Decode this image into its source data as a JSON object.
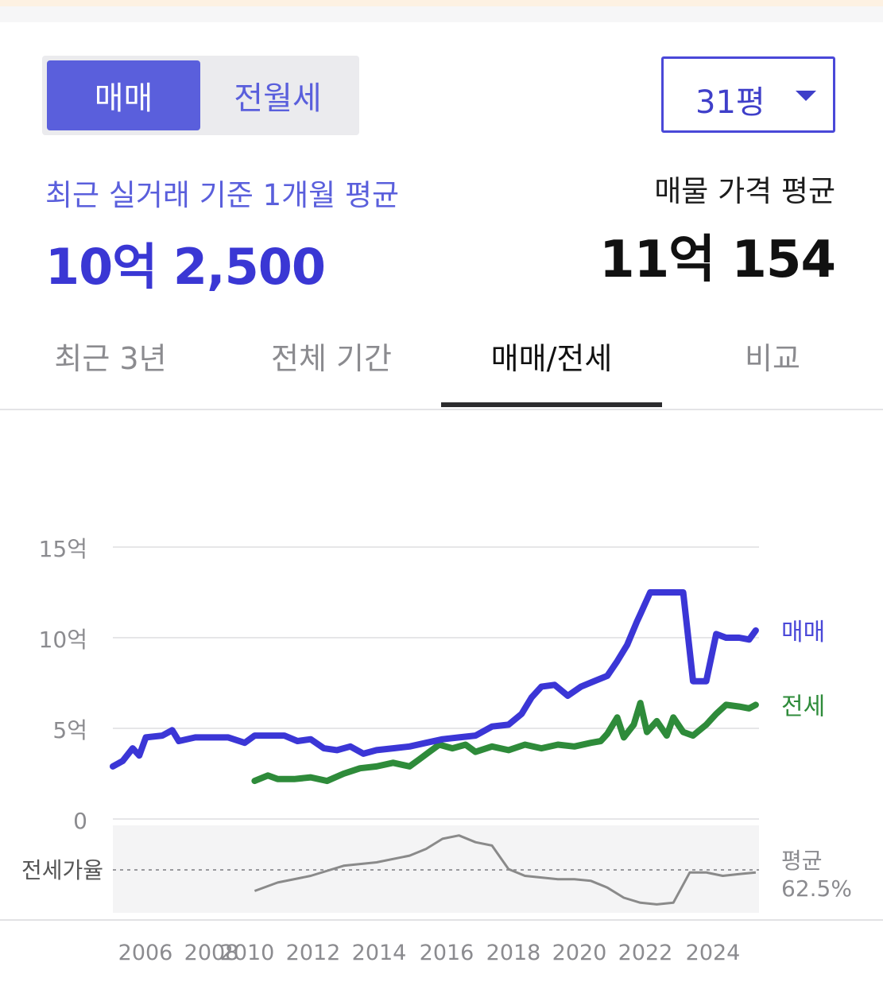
{
  "colors": {
    "accent": "#5a5fdc",
    "sale": "#3b36d6",
    "jeonse": "#2e8b3a",
    "ratio": "#8a8a8a"
  },
  "segment": {
    "active_label": "매매",
    "inactive_label": "전월세"
  },
  "size_select": {
    "value": "31평"
  },
  "recent": {
    "label": "최근 실거래 기준 1개월 평균",
    "value": "10억 2,500"
  },
  "listing": {
    "label": "매물 가격 평균",
    "value": "11억 154"
  },
  "tabs": [
    {
      "label": "최근 3년"
    },
    {
      "label": "전체 기간"
    },
    {
      "label": "매매/전세",
      "active": true
    },
    {
      "label": "비교"
    }
  ],
  "chart_data": {
    "type": "line",
    "y_unit": "억",
    "ylim": [
      0,
      15
    ],
    "yticks": [
      "15억",
      "10억",
      "5억",
      "0"
    ],
    "ytick_values": [
      15,
      10,
      5,
      0
    ],
    "xticks": [
      "2006",
      "2008",
      "2010",
      "2012",
      "2014",
      "2016",
      "2018",
      "2020",
      "2022",
      "2024"
    ],
    "series": [
      {
        "name": "매매",
        "color": "#3b36d6",
        "points": [
          [
            2006.0,
            2.9
          ],
          [
            2006.3,
            3.2
          ],
          [
            2006.6,
            3.9
          ],
          [
            2006.8,
            3.5
          ],
          [
            2007.0,
            4.5
          ],
          [
            2007.5,
            4.6
          ],
          [
            2007.8,
            4.9
          ],
          [
            2008.0,
            4.3
          ],
          [
            2008.5,
            4.5
          ],
          [
            2009.0,
            4.5
          ],
          [
            2009.5,
            4.5
          ],
          [
            2010.0,
            4.2
          ],
          [
            2010.3,
            4.6
          ],
          [
            2010.8,
            4.6
          ],
          [
            2011.2,
            4.6
          ],
          [
            2011.6,
            4.3
          ],
          [
            2012.0,
            4.4
          ],
          [
            2012.4,
            3.9
          ],
          [
            2012.8,
            3.8
          ],
          [
            2013.2,
            4.0
          ],
          [
            2013.6,
            3.6
          ],
          [
            2014.0,
            3.8
          ],
          [
            2014.5,
            3.9
          ],
          [
            2015.0,
            4.0
          ],
          [
            2015.5,
            4.2
          ],
          [
            2016.0,
            4.4
          ],
          [
            2016.5,
            4.5
          ],
          [
            2017.0,
            4.6
          ],
          [
            2017.5,
            5.1
          ],
          [
            2018.0,
            5.2
          ],
          [
            2018.4,
            5.8
          ],
          [
            2018.7,
            6.7
          ],
          [
            2019.0,
            7.3
          ],
          [
            2019.4,
            7.4
          ],
          [
            2019.8,
            6.8
          ],
          [
            2020.2,
            7.3
          ],
          [
            2020.6,
            7.6
          ],
          [
            2021.0,
            7.9
          ],
          [
            2021.3,
            8.7
          ],
          [
            2021.6,
            9.6
          ],
          [
            2021.9,
            10.9
          ],
          [
            2022.0,
            11.3
          ],
          [
            2022.3,
            12.5
          ],
          [
            2022.8,
            12.5
          ],
          [
            2023.3,
            12.5
          ],
          [
            2023.6,
            7.6
          ],
          [
            2024.0,
            7.6
          ],
          [
            2024.3,
            10.2
          ],
          [
            2024.6,
            10.0
          ],
          [
            2025.0,
            10.0
          ],
          [
            2025.3,
            9.9
          ],
          [
            2025.5,
            10.4
          ]
        ]
      },
      {
        "name": "전세",
        "color": "#2e8b3a",
        "points": [
          [
            2010.3,
            2.1
          ],
          [
            2010.7,
            2.4
          ],
          [
            2011.0,
            2.2
          ],
          [
            2011.5,
            2.2
          ],
          [
            2012.0,
            2.3
          ],
          [
            2012.5,
            2.1
          ],
          [
            2013.0,
            2.5
          ],
          [
            2013.5,
            2.8
          ],
          [
            2014.0,
            2.9
          ],
          [
            2014.5,
            3.1
          ],
          [
            2015.0,
            2.9
          ],
          [
            2015.3,
            3.3
          ],
          [
            2015.6,
            3.7
          ],
          [
            2015.9,
            4.1
          ],
          [
            2016.3,
            3.9
          ],
          [
            2016.7,
            4.1
          ],
          [
            2017.0,
            3.7
          ],
          [
            2017.5,
            4.0
          ],
          [
            2018.0,
            3.8
          ],
          [
            2018.5,
            4.1
          ],
          [
            2019.0,
            3.9
          ],
          [
            2019.5,
            4.1
          ],
          [
            2020.0,
            4.0
          ],
          [
            2020.5,
            4.2
          ],
          [
            2020.8,
            4.3
          ],
          [
            2021.0,
            4.7
          ],
          [
            2021.3,
            5.6
          ],
          [
            2021.5,
            4.5
          ],
          [
            2021.8,
            5.2
          ],
          [
            2022.0,
            6.4
          ],
          [
            2022.2,
            4.8
          ],
          [
            2022.5,
            5.4
          ],
          [
            2022.8,
            4.6
          ],
          [
            2023.0,
            5.6
          ],
          [
            2023.3,
            4.8
          ],
          [
            2023.6,
            4.6
          ],
          [
            2024.0,
            5.2
          ],
          [
            2024.3,
            5.8
          ],
          [
            2024.6,
            6.3
          ],
          [
            2025.0,
            6.2
          ],
          [
            2025.3,
            6.1
          ],
          [
            2025.5,
            6.3
          ]
        ]
      },
      {
        "name": "전세가율",
        "label": "평균",
        "value": "62.5%",
        "color": "#8a8a8a",
        "points": [
          [
            2010.3,
            51
          ],
          [
            2011.0,
            56
          ],
          [
            2012.0,
            60
          ],
          [
            2013.0,
            66
          ],
          [
            2014.0,
            68
          ],
          [
            2015.0,
            72
          ],
          [
            2015.5,
            76
          ],
          [
            2016.0,
            82
          ],
          [
            2016.5,
            84
          ],
          [
            2017.0,
            80
          ],
          [
            2017.5,
            78
          ],
          [
            2018.0,
            64
          ],
          [
            2018.5,
            60
          ],
          [
            2019.0,
            59
          ],
          [
            2019.5,
            58
          ],
          [
            2020.0,
            58
          ],
          [
            2020.5,
            57
          ],
          [
            2021.0,
            53
          ],
          [
            2021.5,
            47
          ],
          [
            2022.0,
            44
          ],
          [
            2022.5,
            43
          ],
          [
            2023.0,
            44
          ],
          [
            2023.5,
            62
          ],
          [
            2024.0,
            62
          ],
          [
            2024.5,
            60
          ],
          [
            2025.0,
            61
          ],
          [
            2025.5,
            62
          ]
        ]
      }
    ],
    "ratio_label": "전세가율",
    "legend": [
      "매매",
      "전세"
    ]
  }
}
